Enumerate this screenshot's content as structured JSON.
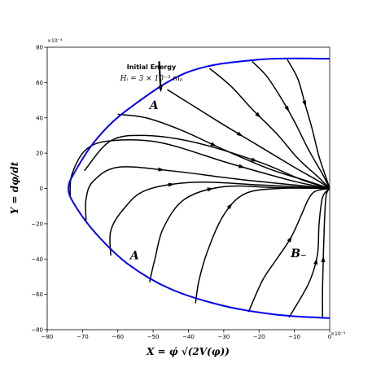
{
  "chart_data": {
    "type": "line",
    "title": "",
    "xlabel": "X = φ̇ √(2V(φ))",
    "ylabel": "Y = dφ/dt",
    "x_exponent_label": "×10⁻⁴",
    "y_exponent_label": "×10⁻⁴",
    "xlim": [
      -80,
      0
    ],
    "ylim": [
      -80,
      80
    ],
    "xticks": [
      -80,
      -70,
      -60,
      -50,
      -40,
      -30,
      -20,
      -10,
      0
    ],
    "yticks": [
      -80,
      -60,
      -40,
      -20,
      0,
      20,
      40,
      60,
      80
    ],
    "grid": false,
    "annotation": {
      "title": "Initial Energy",
      "subtitle": "Hᵢ = 3 × 10⁻³ mₚ",
      "arrow_from": [
        -49,
        72
      ],
      "arrow_to": [
        -49,
        56
      ]
    },
    "region_labels": [
      {
        "text": "A",
        "x": -51,
        "y": 45
      },
      {
        "text": "A",
        "x": -56.5,
        "y": -40
      },
      {
        "text": "B₋",
        "x": -11,
        "y": -39
      }
    ],
    "boundary": {
      "name": "energy boundary",
      "color": "#0000ee",
      "points": [
        [
          0,
          73.5
        ],
        [
          -20,
          73
        ],
        [
          -40,
          66
        ],
        [
          -57,
          45
        ],
        [
          -66,
          28
        ],
        [
          -72,
          10
        ],
        [
          -74,
          0
        ],
        [
          -72,
          -10
        ],
        [
          -66,
          -26
        ],
        [
          -57,
          -43
        ],
        [
          -45,
          -57
        ],
        [
          -30,
          -66.5
        ],
        [
          -15,
          -71.5
        ],
        [
          0,
          -73.5
        ]
      ]
    },
    "trajectories": [
      {
        "color": "#000000",
        "arrow_at": 0.45,
        "points": [
          [
            -2,
            -73.5
          ],
          [
            -2,
            -55
          ],
          [
            -1.5,
            -20
          ],
          [
            -1,
            -4
          ],
          [
            0,
            0
          ]
        ]
      },
      {
        "color": "#000000",
        "arrow_at": 0.45,
        "points": [
          [
            -11.5,
            -73
          ],
          [
            -6,
            -54
          ],
          [
            -3.5,
            -38
          ],
          [
            -3,
            -20
          ],
          [
            -2,
            -5
          ],
          [
            0,
            0
          ]
        ]
      },
      {
        "color": "#000000",
        "arrow_at": 0.55,
        "points": [
          [
            -23,
            -70
          ],
          [
            -19,
            -52
          ],
          [
            -15,
            -40
          ],
          [
            -11,
            -28
          ],
          [
            -8,
            -15
          ],
          [
            -6,
            -6
          ],
          [
            -4,
            -1.5
          ],
          [
            0,
            0
          ]
        ]
      },
      {
        "color": "#000000",
        "arrow_at": 0.5,
        "points": [
          [
            -38,
            -65
          ],
          [
            -37,
            -52
          ],
          [
            -34.5,
            -35
          ],
          [
            -30,
            -15
          ],
          [
            -24,
            -3
          ],
          [
            -14,
            0
          ],
          [
            0,
            0
          ]
        ]
      },
      {
        "color": "#000000",
        "arrow_at": 0.5,
        "points": [
          [
            -51,
            -53
          ],
          [
            -49.5,
            -40
          ],
          [
            -47,
            -22
          ],
          [
            -41,
            -6
          ],
          [
            -30,
            1
          ],
          [
            -15,
            0.5
          ],
          [
            0,
            0
          ]
        ]
      },
      {
        "color": "#000000",
        "arrow_at": 0.4,
        "points": [
          [
            -62,
            -38
          ],
          [
            -62,
            -24
          ],
          [
            -58.5,
            -12
          ],
          [
            -52,
            -1
          ],
          [
            -38,
            3.5
          ],
          [
            -20,
            2
          ],
          [
            0,
            0
          ]
        ]
      },
      {
        "color": "#000000",
        "arrow_at": 0.4,
        "points": [
          [
            -69,
            -18
          ],
          [
            -69,
            -6
          ],
          [
            -67,
            4
          ],
          [
            -60,
            12
          ],
          [
            -45,
            10
          ],
          [
            -25,
            5
          ],
          [
            0,
            0
          ]
        ]
      },
      {
        "color": "#000000",
        "arrow_at": 0.7,
        "points": [
          [
            -73.5,
            -4
          ],
          [
            -73,
            8
          ],
          [
            -69,
            22
          ],
          [
            -62,
            27
          ],
          [
            -48,
            26
          ],
          [
            -28,
            14
          ],
          [
            -10,
            4
          ],
          [
            0,
            0
          ]
        ]
      },
      {
        "color": "#000000",
        "arrow_at": 0.7,
        "points": [
          [
            -69.5,
            10
          ],
          [
            -62,
            27
          ],
          [
            -52,
            30
          ],
          [
            -38,
            26
          ],
          [
            -20,
            15
          ],
          [
            -8,
            5
          ],
          [
            0,
            0
          ]
        ]
      },
      {
        "color": "#000000",
        "arrow_at": 0.45,
        "points": [
          [
            -60,
            42
          ],
          [
            -52,
            40
          ],
          [
            -42,
            33
          ],
          [
            -30,
            22
          ],
          [
            -17,
            11
          ],
          [
            -6,
            4
          ],
          [
            0,
            0
          ]
        ]
      },
      {
        "color": "#000000",
        "arrow_at": 0.45,
        "points": [
          [
            -46,
            56
          ],
          [
            -38,
            46
          ],
          [
            -30,
            36
          ],
          [
            -20,
            24
          ],
          [
            -10,
            12
          ],
          [
            -3,
            4
          ],
          [
            0,
            0
          ]
        ]
      },
      {
        "color": "#000000",
        "arrow_at": 0.4,
        "points": [
          [
            -34,
            68
          ],
          [
            -28,
            58
          ],
          [
            -22,
            45
          ],
          [
            -15,
            31
          ],
          [
            -9,
            17
          ],
          [
            -3,
            6
          ],
          [
            0,
            0
          ]
        ]
      },
      {
        "color": "#000000",
        "arrow_at": 0.4,
        "points": [
          [
            -22,
            72
          ],
          [
            -18,
            64
          ],
          [
            -14,
            52
          ],
          [
            -10,
            38
          ],
          [
            -6,
            22
          ],
          [
            -2,
            8
          ],
          [
            0,
            0
          ]
        ]
      },
      {
        "color": "#000000",
        "arrow_at": 0.35,
        "points": [
          [
            -12,
            73
          ],
          [
            -9,
            62
          ],
          [
            -7,
            48
          ],
          [
            -5,
            34
          ],
          [
            -3,
            18
          ],
          [
            -1,
            6
          ],
          [
            0,
            0
          ]
        ]
      }
    ]
  }
}
